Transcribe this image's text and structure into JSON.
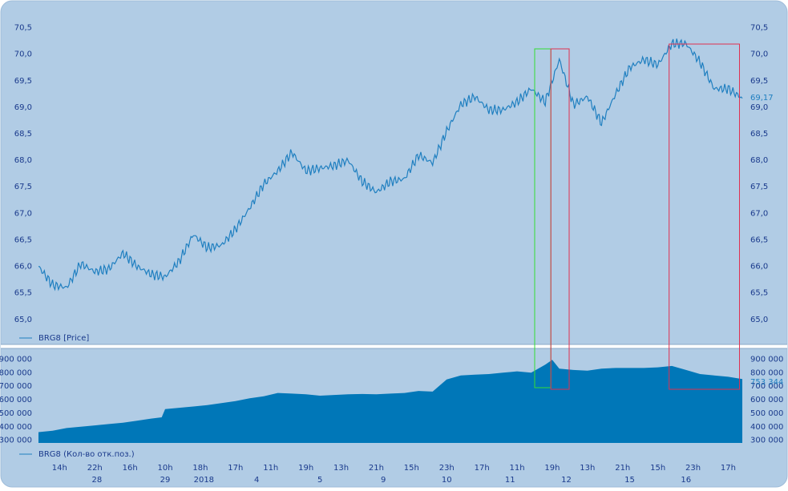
{
  "chart_data": [
    {
      "type": "line",
      "legend": "BRG8 [Price]",
      "ylim": [
        64.8,
        70.6
      ],
      "yticks": [
        "70,5",
        "70,0",
        "69,5",
        "69,0",
        "68,5",
        "68,0",
        "67,5",
        "67,0",
        "66,5",
        "66,0",
        "65,5",
        "65,0"
      ],
      "ytick_values": [
        70.5,
        70.0,
        69.5,
        69.0,
        68.5,
        68.0,
        67.5,
        67.0,
        66.5,
        66.0,
        65.5,
        65.0
      ],
      "last_value_label": "69,17",
      "last_value": 69.17,
      "series_color": "#1f7fc0",
      "x": [
        0,
        2,
        4,
        6,
        8,
        10,
        12,
        14,
        16,
        18,
        20,
        22,
        24,
        26,
        28,
        30,
        32,
        34,
        36,
        38,
        40,
        42,
        44,
        46,
        48,
        50,
        52,
        54,
        56,
        58,
        60,
        62,
        64,
        66,
        68,
        70,
        72,
        74,
        76,
        78,
        80,
        82,
        84,
        86,
        88,
        90,
        92,
        94,
        96,
        98,
        100
      ],
      "y": [
        66.0,
        65.65,
        65.6,
        66.05,
        65.9,
        65.95,
        66.25,
        66.0,
        65.85,
        65.8,
        66.1,
        66.6,
        66.35,
        66.4,
        66.7,
        67.1,
        67.55,
        67.8,
        68.15,
        67.8,
        67.85,
        67.9,
        68.0,
        67.6,
        67.4,
        67.6,
        67.65,
        68.1,
        67.95,
        68.55,
        69.05,
        69.2,
        68.95,
        68.95,
        69.1,
        69.35,
        69.1,
        69.9,
        69.05,
        69.2,
        68.7,
        69.25,
        69.75,
        69.9,
        69.8,
        70.2,
        70.2,
        69.85,
        69.35,
        69.35,
        69.17
      ]
    },
    {
      "type": "area",
      "legend": "BRG8 (Кол-во отк.поз.)",
      "ylim": [
        280000,
        950000
      ],
      "yticks": [
        "900 000",
        "800 000",
        "700 000",
        "600 000",
        "500 000",
        "400 000",
        "300 000"
      ],
      "ytick_values": [
        900000,
        800000,
        700000,
        600000,
        500000,
        400000,
        300000
      ],
      "last_value_label": "753 344",
      "last_value": 753344,
      "series_color": "#0077b8",
      "x": [
        0,
        2,
        4,
        6,
        8,
        10,
        12,
        14,
        16,
        17.5,
        18,
        20,
        22,
        24,
        26,
        28,
        30,
        32,
        34,
        36,
        38,
        40,
        42,
        44,
        46,
        48,
        50,
        52,
        54,
        56,
        58,
        60,
        62,
        64,
        66,
        68,
        70,
        72,
        73,
        74,
        76,
        78,
        80,
        82,
        84,
        86,
        88,
        90,
        92,
        94,
        96,
        98,
        100
      ],
      "y": [
        360000,
        370000,
        390000,
        400000,
        410000,
        420000,
        430000,
        445000,
        460000,
        470000,
        530000,
        540000,
        550000,
        560000,
        575000,
        590000,
        610000,
        625000,
        650000,
        645000,
        640000,
        630000,
        635000,
        640000,
        642000,
        640000,
        645000,
        650000,
        665000,
        660000,
        750000,
        780000,
        785000,
        790000,
        800000,
        810000,
        800000,
        860000,
        895000,
        830000,
        820000,
        815000,
        830000,
        835000,
        835000,
        835000,
        840000,
        850000,
        820000,
        790000,
        780000,
        770000,
        753344
      ]
    }
  ],
  "x_axis": {
    "hour_labels": [
      "14h",
      "22h",
      "16h",
      "10h",
      "18h",
      "17h",
      "11h",
      "19h",
      "13h",
      "21h",
      "15h",
      "23h",
      "17h",
      "11h",
      "19h",
      "13h",
      "21h",
      "15h",
      "23h",
      "17h"
    ],
    "hour_positions": [
      3,
      8,
      13,
      18,
      23,
      28,
      33,
      38,
      43,
      48,
      53,
      58,
      63,
      68,
      73,
      78,
      83,
      88,
      93,
      98
    ],
    "day_labels": [
      "28",
      "29",
      "2018",
      "4",
      "5",
      "9",
      "10",
      "11",
      "12",
      "15",
      "16"
    ],
    "day_positions": [
      8.3,
      18,
      23.5,
      31,
      40,
      49,
      58,
      67,
      75,
      84,
      92
    ]
  },
  "highlights": [
    {
      "color": "#33dd33",
      "x_from": 70.5,
      "x_to": 72.8
    },
    {
      "color": "#e03050",
      "x_from": 72.8,
      "x_to": 75.4
    },
    {
      "color": "#e03050",
      "x_from": 89.6,
      "x_to": 99.6
    }
  ],
  "colors": {
    "background": "#b6d0e8",
    "panel": "#aac7e2",
    "divider": "#ffffff"
  }
}
